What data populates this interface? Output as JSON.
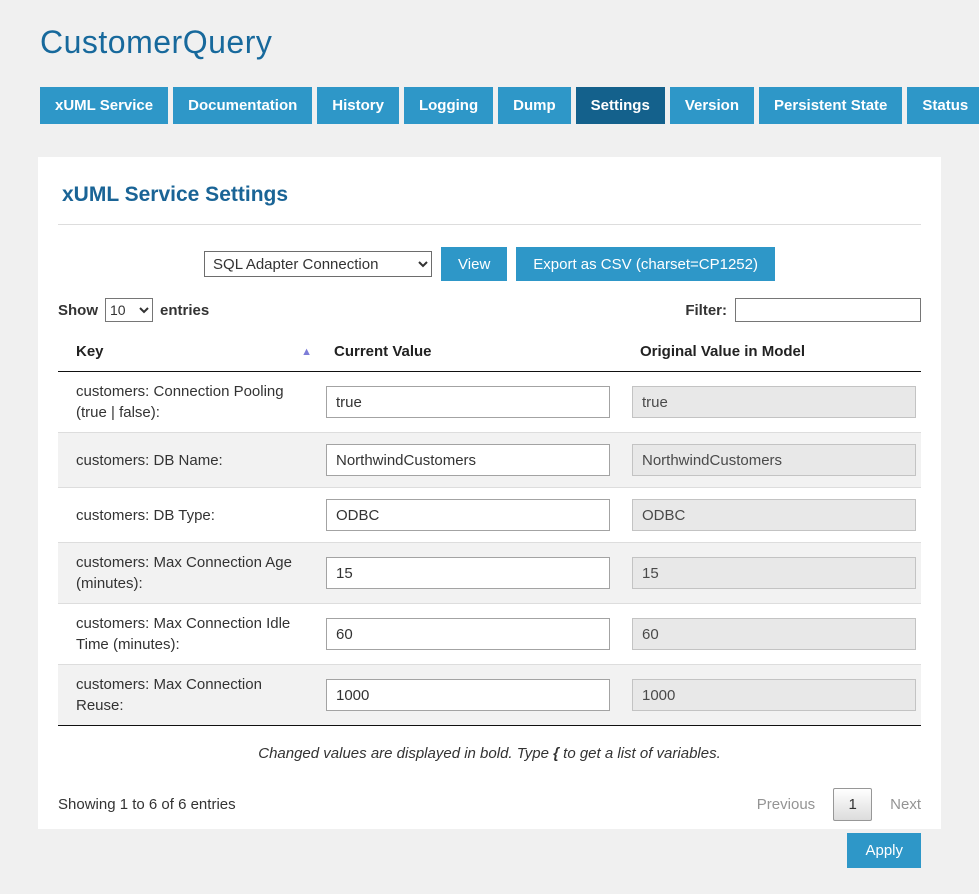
{
  "app": {
    "title": "CustomerQuery"
  },
  "tabs": [
    {
      "label": "xUML Service",
      "active": false
    },
    {
      "label": "Documentation",
      "active": false
    },
    {
      "label": "History",
      "active": false
    },
    {
      "label": "Logging",
      "active": false
    },
    {
      "label": "Dump",
      "active": false
    },
    {
      "label": "Settings",
      "active": true
    },
    {
      "label": "Version",
      "active": false
    },
    {
      "label": "Persistent State",
      "active": false
    },
    {
      "label": "Status",
      "active": false
    }
  ],
  "settings": {
    "heading": "xUML Service Settings",
    "category_select": {
      "selected": "SQL Adapter Connection"
    },
    "view_button": "View",
    "export_button": "Export as CSV (charset=CP1252)",
    "show_label": "Show",
    "entries_label": "entries",
    "page_length": "10",
    "filter_label": "Filter:",
    "filter_value": "",
    "table": {
      "columns": [
        "Key",
        "Current Value",
        "Original Value in Model"
      ],
      "sort_icon": "asc",
      "rows": [
        {
          "key": "customers: Connection Pooling (true | false):",
          "current": "true",
          "original": "true"
        },
        {
          "key": "customers: DB Name:",
          "current": "NorthwindCustomers",
          "original": "NorthwindCustomers"
        },
        {
          "key": "customers: DB Type:",
          "current": "ODBC",
          "original": "ODBC"
        },
        {
          "key": "customers: Max Connection Age (minutes):",
          "current": "15",
          "original": "15"
        },
        {
          "key": "customers: Max Connection Idle Time (minutes):",
          "current": "60",
          "original": "60"
        },
        {
          "key": "customers: Max Connection Reuse:",
          "current": "1000",
          "original": "1000"
        }
      ]
    },
    "note": {
      "before": "Changed values are displayed in bold. Type ",
      "bold": "{",
      "after": " to get a list of variables."
    },
    "showing_info": "Showing 1 to 6 of 6 entries",
    "pagination": {
      "previous": "Previous",
      "page": "1",
      "next": "Next"
    },
    "apply_button": "Apply"
  },
  "colors": {
    "page_background": "#f0f0f0",
    "accent_blue": "#2e97c8",
    "active_tab_blue": "#14618c",
    "heading_blue": "#1a6496",
    "title_blue": "#17699c",
    "stripe_gray": "#f2f2f2",
    "readonly_gray": "#e8e8e8",
    "sort_arrow": "#7d7dd8"
  }
}
